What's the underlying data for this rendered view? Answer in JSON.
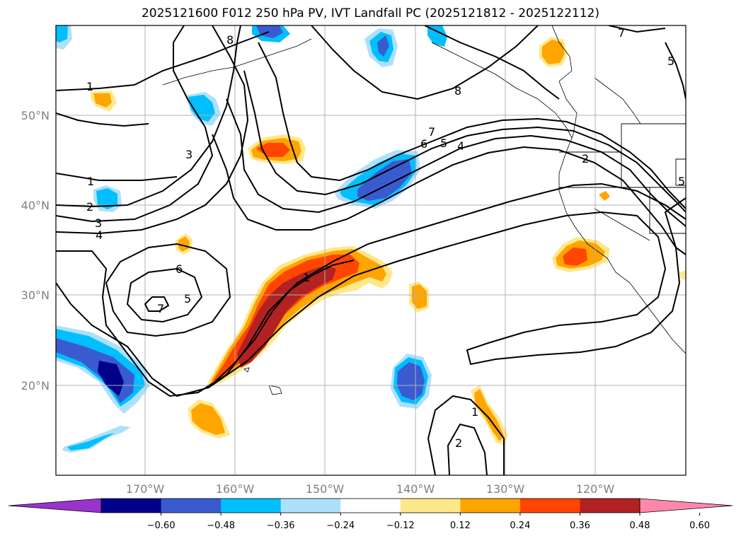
{
  "title": "2025121600 F012 250 hPa PV, IVT Landfall PC (2025121812 - 2025122112)",
  "map": {
    "lon_labels": [
      "170°W",
      "160°W",
      "150°W",
      "140°W",
      "130°W",
      "120°W"
    ],
    "lat_labels": [
      "50°N",
      "40°N",
      "30°N",
      "20°N"
    ],
    "contour_labels": [
      "8",
      "1",
      "3",
      "7",
      "6",
      "5",
      "4",
      "2",
      "8",
      "1",
      "2",
      "3",
      "4",
      "6",
      "7",
      "5",
      "1",
      "1",
      "2",
      "7",
      "5",
      "5"
    ]
  },
  "colorbar": {
    "ticks": [
      "−0.60",
      "−0.48",
      "−0.36",
      "−0.24",
      "−0.12",
      "0.12",
      "0.24",
      "0.36",
      "0.48",
      "0.60"
    ],
    "colors": [
      "#9933cc",
      "#00008b",
      "#3a5bd0",
      "#00bfff",
      "#aee0fa",
      "#ffffff",
      "#ffe88a",
      "#ffa500",
      "#ff4500",
      "#b22222",
      "#ff88aa"
    ]
  }
}
